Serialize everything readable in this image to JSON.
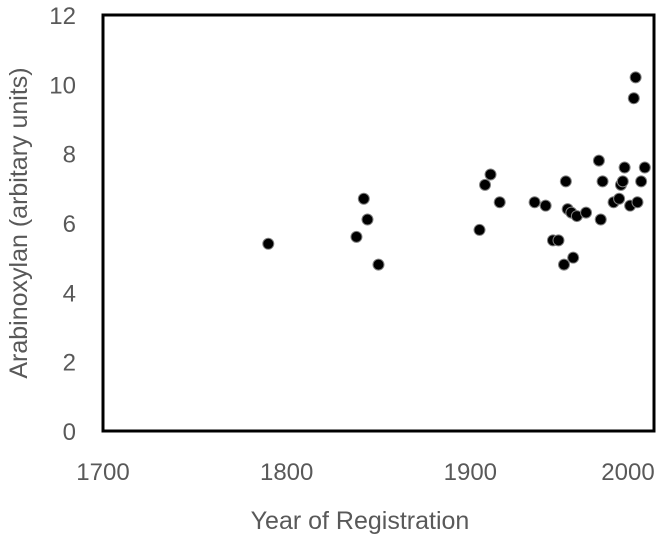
{
  "chart_data": {
    "type": "scatter",
    "title": "",
    "xlabel": "Year of Registration",
    "ylabel": "Arabinoxylan (arbitary units)",
    "xlim": [
      1700,
      2000
    ],
    "ylim": [
      0,
      12
    ],
    "xticks": [
      "1700",
      "1800",
      "1900",
      "2000"
    ],
    "yticks": [
      "0",
      "2",
      "4",
      "6",
      "8",
      "10",
      "12"
    ],
    "grid": false,
    "legend": "none",
    "marker_color": "#000000",
    "series": [
      {
        "points": [
          {
            "x": 1790,
            "y": 5.4
          },
          {
            "x": 1838,
            "y": 5.6
          },
          {
            "x": 1842,
            "y": 6.7
          },
          {
            "x": 1844,
            "y": 6.1
          },
          {
            "x": 1850,
            "y": 4.8
          },
          {
            "x": 1905,
            "y": 5.8
          },
          {
            "x": 1908,
            "y": 7.1
          },
          {
            "x": 1911,
            "y": 7.4
          },
          {
            "x": 1916,
            "y": 6.6
          },
          {
            "x": 1935,
            "y": 6.6
          },
          {
            "x": 1941,
            "y": 6.5
          },
          {
            "x": 1945,
            "y": 5.5
          },
          {
            "x": 1948,
            "y": 5.5
          },
          {
            "x": 1951,
            "y": 4.8
          },
          {
            "x": 1952,
            "y": 7.2
          },
          {
            "x": 1953,
            "y": 6.4
          },
          {
            "x": 1955,
            "y": 6.3
          },
          {
            "x": 1956,
            "y": 5.0
          },
          {
            "x": 1958,
            "y": 6.2
          },
          {
            "x": 1963,
            "y": 6.3
          },
          {
            "x": 1970,
            "y": 7.8
          },
          {
            "x": 1971,
            "y": 6.1
          },
          {
            "x": 1972,
            "y": 7.2
          },
          {
            "x": 1978,
            "y": 6.6
          },
          {
            "x": 1981,
            "y": 6.7
          },
          {
            "x": 1982,
            "y": 7.1
          },
          {
            "x": 1983,
            "y": 7.2
          },
          {
            "x": 1984,
            "y": 7.6
          },
          {
            "x": 1987,
            "y": 6.5
          },
          {
            "x": 1989,
            "y": 9.6
          },
          {
            "x": 1990,
            "y": 10.2
          },
          {
            "x": 1991,
            "y": 6.6
          },
          {
            "x": 1993,
            "y": 7.2
          },
          {
            "x": 1995,
            "y": 7.6
          }
        ]
      }
    ]
  }
}
